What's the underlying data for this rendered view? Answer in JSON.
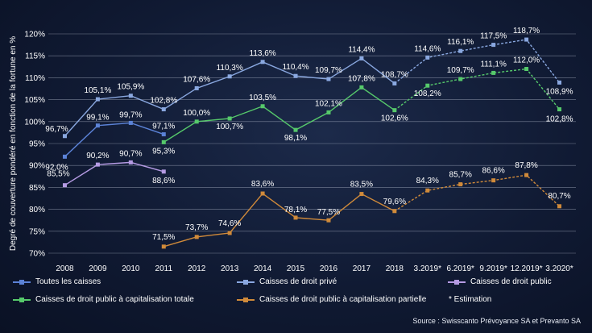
{
  "chart_data": {
    "type": "line",
    "title": "",
    "ylabel": "Degré de couverture pondéré en fonction de la fortune en %",
    "xlabel": "",
    "ylim": [
      70,
      120
    ],
    "yticks": [
      "70%",
      "75%",
      "80%",
      "85%",
      "90%",
      "95%",
      "100%",
      "105%",
      "110%",
      "115%",
      "120%"
    ],
    "categories": [
      "2008",
      "2009",
      "2010",
      "2011",
      "2012",
      "2013",
      "2014",
      "2015",
      "2016",
      "2017",
      "2018",
      "3.2019*",
      "6.2019*",
      "9.2019*",
      "12.2019*",
      "3.2020*"
    ],
    "series": [
      {
        "name": "Toutes les caisses",
        "color": "#5b82d6",
        "values": [
          92.0,
          99.1,
          99.7,
          97.1,
          null,
          null,
          null,
          null,
          null,
          null,
          null,
          null,
          null,
          null,
          null,
          null
        ],
        "labels": [
          "92,0%",
          "99,1%",
          "99,7%",
          "97,1%",
          null,
          null,
          null,
          null,
          null,
          null,
          null,
          null,
          null,
          null,
          null,
          null
        ],
        "estimated_from": 99
      },
      {
        "name": "Caisses de droit privé",
        "color": "#8aa8e0",
        "values": [
          96.7,
          105.1,
          105.9,
          102.8,
          107.6,
          110.3,
          113.6,
          110.4,
          109.7,
          114.4,
          108.7,
          114.6,
          116.1,
          117.5,
          118.7,
          108.9
        ],
        "labels": [
          "96,7%",
          "105,1%",
          "105,9%",
          "102,8%",
          "107,6%",
          "110,3%",
          "113,6%",
          "110,4%",
          "109,7%",
          "114,4%",
          "108,7%",
          "114,6%",
          "116,1%",
          "117,5%",
          "118,7%",
          "108,9%"
        ],
        "estimated_from": 10
      },
      {
        "name": "Caisses de droit public",
        "color": "#b59be3",
        "values": [
          85.5,
          90.2,
          90.7,
          88.6,
          null,
          null,
          null,
          null,
          null,
          null,
          null,
          null,
          null,
          null,
          null,
          null
        ],
        "labels": [
          "85,5%",
          "90,2%",
          "90,7%",
          "88,6%",
          null,
          null,
          null,
          null,
          null,
          null,
          null,
          null,
          null,
          null,
          null,
          null
        ],
        "estimated_from": 99
      },
      {
        "name": "Caisses de droit public à capitalisation totale",
        "color": "#56c96b",
        "values": [
          null,
          null,
          null,
          95.3,
          100.0,
          100.7,
          103.5,
          98.1,
          102.1,
          107.8,
          102.6,
          108.2,
          109.7,
          111.1,
          112.0,
          102.8
        ],
        "labels": [
          null,
          null,
          null,
          "95,3%",
          "100,0%",
          "100,7%",
          "103,5%",
          "98,1%",
          "102,1%",
          "107,8%",
          "102,6%",
          "108,2%",
          "109,7%",
          "111,1%",
          "112,0%",
          "102,8%"
        ],
        "estimated_from": 10
      },
      {
        "name": "Caisses de droit public à capitalisation partielle",
        "color": "#d08a3a",
        "values": [
          null,
          null,
          null,
          71.5,
          73.7,
          74.6,
          83.6,
          78.1,
          77.5,
          83.5,
          79.6,
          84.3,
          85.7,
          86.6,
          87.8,
          80.7
        ],
        "labels": [
          null,
          null,
          null,
          "71,5%",
          "73,7%",
          "74,6%",
          "83,6%",
          "78,1%",
          "77,5%",
          "83,5%",
          "79,6%",
          "84,3%",
          "85,7%",
          "86,6%",
          "87,8%",
          "80,7%"
        ],
        "estimated_from": 10
      }
    ],
    "legend_note": "* Estimation",
    "legend_position": "bottom",
    "grid": true
  },
  "source_text": "Source : Swisscanto Prévoyance SA et Prevanto SA"
}
